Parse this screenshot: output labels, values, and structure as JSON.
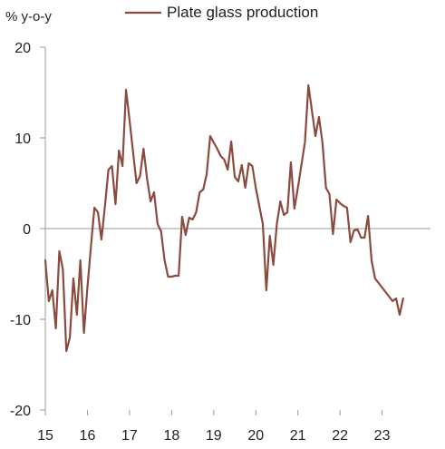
{
  "chart_data": {
    "type": "line",
    "ylabel": "% y-o-y",
    "ylim": [
      -20,
      20
    ],
    "yticks": [
      {
        "value": 20,
        "label": "20"
      },
      {
        "value": 10,
        "label": "10"
      },
      {
        "value": 0,
        "label": "0"
      },
      {
        "value": -10,
        "label": "-10"
      },
      {
        "value": -20,
        "label": "-20"
      }
    ],
    "xlim": [
      2015,
      2024.15
    ],
    "xticks": [
      {
        "value": 2015,
        "label": "15"
      },
      {
        "value": 2016,
        "label": "16"
      },
      {
        "value": 2017,
        "label": "17"
      },
      {
        "value": 2018,
        "label": "18"
      },
      {
        "value": 2019,
        "label": "19"
      },
      {
        "value": 2020,
        "label": "20"
      },
      {
        "value": 2021,
        "label": "21"
      },
      {
        "value": 2022,
        "label": "22"
      },
      {
        "value": 2023,
        "label": "23"
      }
    ],
    "legend_position": "top-center",
    "grid": false,
    "series": [
      {
        "name": "Plate glass production",
        "color": "#8B4A3E",
        "points": [
          [
            2015.0,
            -3.5
          ],
          [
            2015.083,
            -8.0
          ],
          [
            2015.167,
            -6.8
          ],
          [
            2015.25,
            -11.0
          ],
          [
            2015.333,
            -2.5
          ],
          [
            2015.417,
            -4.5
          ],
          [
            2015.5,
            -13.5
          ],
          [
            2015.583,
            -12.0
          ],
          [
            2015.667,
            -5.5
          ],
          [
            2015.75,
            -9.5
          ],
          [
            2015.833,
            -3.5
          ],
          [
            2015.917,
            -11.5
          ],
          [
            2016.0,
            -6.5
          ],
          [
            2016.083,
            -2.0
          ],
          [
            2016.167,
            2.3
          ],
          [
            2016.25,
            1.8
          ],
          [
            2016.333,
            -1.2
          ],
          [
            2016.417,
            2.5
          ],
          [
            2016.5,
            6.5
          ],
          [
            2016.583,
            6.9
          ],
          [
            2016.667,
            2.7
          ],
          [
            2016.75,
            8.6
          ],
          [
            2016.833,
            6.9
          ],
          [
            2016.917,
            15.3
          ],
          [
            2017.0,
            12.0
          ],
          [
            2017.083,
            8.5
          ],
          [
            2017.167,
            5.0
          ],
          [
            2017.25,
            5.8
          ],
          [
            2017.333,
            8.8
          ],
          [
            2017.417,
            5.5
          ],
          [
            2017.5,
            3.0
          ],
          [
            2017.583,
            4.0
          ],
          [
            2017.667,
            0.5
          ],
          [
            2017.75,
            -0.3
          ],
          [
            2017.833,
            -3.5
          ],
          [
            2017.917,
            -5.3
          ],
          [
            2018.0,
            -5.3
          ],
          [
            2018.083,
            -5.2
          ],
          [
            2018.167,
            -5.2
          ],
          [
            2018.25,
            1.3
          ],
          [
            2018.333,
            -0.7
          ],
          [
            2018.417,
            1.2
          ],
          [
            2018.5,
            1.0
          ],
          [
            2018.583,
            1.8
          ],
          [
            2018.667,
            4.0
          ],
          [
            2018.75,
            4.3
          ],
          [
            2018.833,
            6.0
          ],
          [
            2018.917,
            10.2
          ],
          [
            2019.0,
            9.5
          ],
          [
            2019.083,
            8.8
          ],
          [
            2019.167,
            8.0
          ],
          [
            2019.25,
            7.6
          ],
          [
            2019.333,
            6.5
          ],
          [
            2019.417,
            9.6
          ],
          [
            2019.5,
            5.7
          ],
          [
            2019.583,
            5.2
          ],
          [
            2019.667,
            7.0
          ],
          [
            2019.75,
            4.5
          ],
          [
            2019.833,
            7.2
          ],
          [
            2019.917,
            6.9
          ],
          [
            2020.0,
            4.5
          ],
          [
            2020.083,
            2.5
          ],
          [
            2020.167,
            0.5
          ],
          [
            2020.25,
            -6.8
          ],
          [
            2020.333,
            -0.8
          ],
          [
            2020.417,
            -4.0
          ],
          [
            2020.5,
            0.5
          ],
          [
            2020.583,
            3.0
          ],
          [
            2020.667,
            1.5
          ],
          [
            2020.75,
            1.8
          ],
          [
            2020.833,
            7.3
          ],
          [
            2020.917,
            2.2
          ],
          [
            2021.0,
            4.5
          ],
          [
            2021.083,
            7.0
          ],
          [
            2021.167,
            9.5
          ],
          [
            2021.25,
            15.8
          ],
          [
            2021.333,
            13.0
          ],
          [
            2021.417,
            10.2
          ],
          [
            2021.5,
            12.3
          ],
          [
            2021.583,
            9.5
          ],
          [
            2021.667,
            4.5
          ],
          [
            2021.75,
            3.8
          ],
          [
            2021.833,
            -0.6
          ],
          [
            2021.917,
            3.2
          ],
          [
            2022.0,
            2.8
          ],
          [
            2022.083,
            2.5
          ],
          [
            2022.167,
            2.3
          ],
          [
            2022.25,
            -1.5
          ],
          [
            2022.333,
            -0.2
          ],
          [
            2022.417,
            -0.1
          ],
          [
            2022.5,
            -1.0
          ],
          [
            2022.583,
            -1.0
          ],
          [
            2022.667,
            1.4
          ],
          [
            2022.75,
            -3.5
          ],
          [
            2022.833,
            -5.5
          ],
          [
            2022.917,
            -6.0
          ],
          [
            2023.0,
            -6.5
          ],
          [
            2023.083,
            -7.0
          ],
          [
            2023.167,
            -7.5
          ],
          [
            2023.25,
            -8.0
          ],
          [
            2023.333,
            -7.7
          ],
          [
            2023.417,
            -9.5
          ],
          [
            2023.5,
            -7.7
          ]
        ]
      }
    ]
  }
}
